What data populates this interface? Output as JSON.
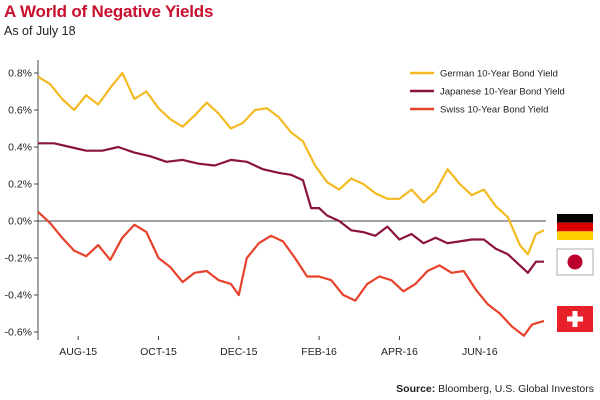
{
  "header": {
    "title": "A World of Negative Yields",
    "subtitle": "As of July 18"
  },
  "footer": {
    "source_label": "Source:",
    "source_text": "Bloomberg, U.S. Global Investors"
  },
  "flags": [
    {
      "country": "Germany",
      "icon": "german-flag-icon"
    },
    {
      "country": "Japan",
      "icon": "japanese-flag-icon"
    },
    {
      "country": "Switzerland",
      "icon": "swiss-flag-icon"
    }
  ],
  "chart_data": {
    "type": "line",
    "title": "A World of Negative Yields",
    "subtitle": "As of July 18",
    "xlabel": "",
    "ylabel": "",
    "ylim": [
      -0.65,
      0.85
    ],
    "y_ticks": [
      "0.8%",
      "0.6%",
      "0.4%",
      "0.2%",
      "0.0%",
      "-0.2%",
      "-0.4%",
      "-0.6%"
    ],
    "y_tick_values": [
      0.8,
      0.6,
      0.4,
      0.2,
      0.0,
      -0.2,
      -0.4,
      -0.6
    ],
    "x_ticks": [
      "AUG-15",
      "OCT-15",
      "DEC-15",
      "FEB-16",
      "APR-16",
      "JUN-16"
    ],
    "x_tick_months": [
      1,
      3,
      5,
      7,
      9,
      11
    ],
    "xlim_months": [
      0,
      12.6
    ],
    "grid": false,
    "legend_position": "top-right",
    "series": [
      {
        "name": "German 10-Year Bond Yield",
        "color": "#f5b921",
        "points": [
          [
            0.0,
            0.78
          ],
          [
            0.3,
            0.74
          ],
          [
            0.6,
            0.66
          ],
          [
            0.9,
            0.6
          ],
          [
            1.2,
            0.68
          ],
          [
            1.5,
            0.63
          ],
          [
            1.8,
            0.72
          ],
          [
            2.1,
            0.8
          ],
          [
            2.4,
            0.66
          ],
          [
            2.7,
            0.7
          ],
          [
            3.0,
            0.61
          ],
          [
            3.3,
            0.55
          ],
          [
            3.6,
            0.51
          ],
          [
            3.9,
            0.57
          ],
          [
            4.2,
            0.64
          ],
          [
            4.5,
            0.58
          ],
          [
            4.8,
            0.5
          ],
          [
            5.1,
            0.53
          ],
          [
            5.4,
            0.6
          ],
          [
            5.7,
            0.61
          ],
          [
            6.0,
            0.56
          ],
          [
            6.3,
            0.48
          ],
          [
            6.6,
            0.43
          ],
          [
            6.9,
            0.3
          ],
          [
            7.2,
            0.21
          ],
          [
            7.5,
            0.17
          ],
          [
            7.8,
            0.23
          ],
          [
            8.1,
            0.2
          ],
          [
            8.4,
            0.15
          ],
          [
            8.7,
            0.12
          ],
          [
            9.0,
            0.12
          ],
          [
            9.3,
            0.17
          ],
          [
            9.6,
            0.1
          ],
          [
            9.9,
            0.16
          ],
          [
            10.2,
            0.28
          ],
          [
            10.5,
            0.2
          ],
          [
            10.8,
            0.14
          ],
          [
            11.1,
            0.17
          ],
          [
            11.4,
            0.08
          ],
          [
            11.7,
            0.02
          ],
          [
            12.0,
            -0.13
          ],
          [
            12.2,
            -0.18
          ],
          [
            12.4,
            -0.07
          ],
          [
            12.6,
            -0.05
          ]
        ]
      },
      {
        "name": "Japanese 10-Year Bond Yield",
        "color": "#8b1538",
        "points": [
          [
            0.0,
            0.42
          ],
          [
            0.4,
            0.42
          ],
          [
            0.8,
            0.4
          ],
          [
            1.2,
            0.38
          ],
          [
            1.6,
            0.38
          ],
          [
            2.0,
            0.4
          ],
          [
            2.4,
            0.37
          ],
          [
            2.8,
            0.35
          ],
          [
            3.2,
            0.32
          ],
          [
            3.6,
            0.33
          ],
          [
            4.0,
            0.31
          ],
          [
            4.4,
            0.3
          ],
          [
            4.8,
            0.33
          ],
          [
            5.2,
            0.32
          ],
          [
            5.6,
            0.28
          ],
          [
            6.0,
            0.26
          ],
          [
            6.3,
            0.25
          ],
          [
            6.6,
            0.22
          ],
          [
            6.8,
            0.07
          ],
          [
            7.0,
            0.07
          ],
          [
            7.2,
            0.03
          ],
          [
            7.5,
            0.0
          ],
          [
            7.8,
            -0.05
          ],
          [
            8.1,
            -0.06
          ],
          [
            8.4,
            -0.08
          ],
          [
            8.7,
            -0.03
          ],
          [
            9.0,
            -0.1
          ],
          [
            9.3,
            -0.07
          ],
          [
            9.6,
            -0.12
          ],
          [
            9.9,
            -0.09
          ],
          [
            10.2,
            -0.12
          ],
          [
            10.5,
            -0.11
          ],
          [
            10.8,
            -0.1
          ],
          [
            11.1,
            -0.1
          ],
          [
            11.4,
            -0.15
          ],
          [
            11.7,
            -0.18
          ],
          [
            12.0,
            -0.24
          ],
          [
            12.2,
            -0.28
          ],
          [
            12.4,
            -0.22
          ],
          [
            12.6,
            -0.22
          ]
        ]
      },
      {
        "name": "Swiss 10-Year Bond Yield",
        "color": "#e8412c",
        "points": [
          [
            0.0,
            0.05
          ],
          [
            0.3,
            -0.01
          ],
          [
            0.6,
            -0.09
          ],
          [
            0.9,
            -0.16
          ],
          [
            1.2,
            -0.19
          ],
          [
            1.5,
            -0.13
          ],
          [
            1.8,
            -0.21
          ],
          [
            2.1,
            -0.09
          ],
          [
            2.4,
            -0.02
          ],
          [
            2.7,
            -0.06
          ],
          [
            3.0,
            -0.2
          ],
          [
            3.3,
            -0.25
          ],
          [
            3.6,
            -0.33
          ],
          [
            3.9,
            -0.28
          ],
          [
            4.2,
            -0.27
          ],
          [
            4.5,
            -0.32
          ],
          [
            4.8,
            -0.34
          ],
          [
            5.0,
            -0.4
          ],
          [
            5.2,
            -0.2
          ],
          [
            5.5,
            -0.12
          ],
          [
            5.8,
            -0.08
          ],
          [
            6.1,
            -0.11
          ],
          [
            6.4,
            -0.2
          ],
          [
            6.7,
            -0.3
          ],
          [
            7.0,
            -0.3
          ],
          [
            7.3,
            -0.32
          ],
          [
            7.6,
            -0.4
          ],
          [
            7.9,
            -0.43
          ],
          [
            8.2,
            -0.34
          ],
          [
            8.5,
            -0.3
          ],
          [
            8.8,
            -0.32
          ],
          [
            9.1,
            -0.38
          ],
          [
            9.4,
            -0.34
          ],
          [
            9.7,
            -0.27
          ],
          [
            10.0,
            -0.24
          ],
          [
            10.3,
            -0.28
          ],
          [
            10.6,
            -0.27
          ],
          [
            10.9,
            -0.37
          ],
          [
            11.2,
            -0.45
          ],
          [
            11.5,
            -0.5
          ],
          [
            11.8,
            -0.57
          ],
          [
            12.1,
            -0.62
          ],
          [
            12.3,
            -0.56
          ],
          [
            12.6,
            -0.54
          ]
        ]
      }
    ]
  }
}
